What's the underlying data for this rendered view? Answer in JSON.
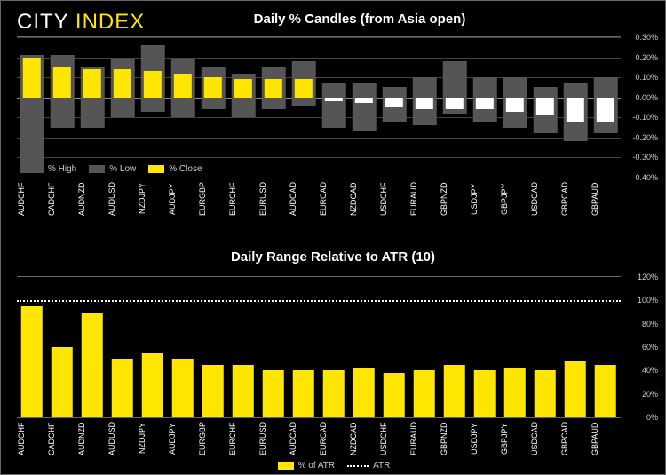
{
  "logo": {
    "city": "CITY",
    "index": "INDEX"
  },
  "chart1": {
    "title": "Daily % Candles (from Asia open)",
    "type": "candlestick-bar",
    "ylim": [
      -0.4,
      0.3
    ],
    "yticks": [
      -0.4,
      -0.3,
      -0.2,
      -0.1,
      0.0,
      0.1,
      0.2,
      0.3
    ],
    "ytick_labels": [
      "-0.40%",
      "-0.30%",
      "-0.20%",
      "-0.10%",
      "0.00%",
      "0.10%",
      "0.20%",
      "0.30%"
    ],
    "colors": {
      "high_low": "#555555",
      "close_pos": "#ffe600",
      "close_neg": "#ffffff",
      "background": "#000000",
      "grid": "#444444",
      "text": "#ffffff"
    },
    "bar_width_pct": 60,
    "wick_width_pct": 78,
    "categories": [
      "AUDCHF",
      "CADCHF",
      "AUDNZD",
      "AUDUSD",
      "NZDJPY",
      "AUDJPY",
      "EURGBP",
      "EURCHF",
      "EURUSD",
      "AUDCAD",
      "EURCAD",
      "NZDCAD",
      "USDCHF",
      "EURAUD",
      "GBPNZD",
      "USDJPY",
      "GBPJPY",
      "USDCAD",
      "GBPCAD",
      "GBPAUD"
    ],
    "high": [
      0.21,
      0.21,
      0.15,
      0.19,
      0.26,
      0.19,
      0.15,
      0.12,
      0.15,
      0.18,
      0.07,
      0.07,
      0.05,
      0.1,
      0.18,
      0.1,
      0.1,
      0.05,
      0.07,
      0.1
    ],
    "low": [
      -0.38,
      -0.15,
      -0.15,
      -0.1,
      -0.07,
      -0.1,
      -0.06,
      -0.1,
      -0.06,
      -0.04,
      -0.15,
      -0.17,
      -0.12,
      -0.14,
      -0.08,
      -0.12,
      -0.15,
      -0.18,
      -0.22,
      -0.18
    ],
    "close": [
      0.2,
      0.15,
      0.14,
      0.14,
      0.13,
      0.12,
      0.1,
      0.09,
      0.09,
      0.09,
      -0.02,
      -0.03,
      -0.05,
      -0.06,
      -0.06,
      -0.06,
      -0.07,
      -0.09,
      -0.12,
      -0.12
    ],
    "legend": [
      {
        "swatch": "grey",
        "label": "% High"
      },
      {
        "swatch": "grey",
        "label": "% Low"
      },
      {
        "swatch": "yellow",
        "label": "% Close"
      }
    ]
  },
  "chart2": {
    "title": "Daily Range Relative to ATR (10)",
    "type": "bar",
    "ylim": [
      0,
      120
    ],
    "yticks": [
      0,
      20,
      40,
      60,
      80,
      100,
      120
    ],
    "ytick_labels": [
      "0%",
      "20%",
      "40%",
      "60%",
      "80%",
      "100%",
      "120%"
    ],
    "colors": {
      "bar": "#ffe600",
      "atr_line": "#ffffff",
      "background": "#000000",
      "text": "#ffffff"
    },
    "bar_width_pct": 72,
    "atr_level": 100,
    "categories": [
      "AUDCHF",
      "CADCHF",
      "AUDNZD",
      "AUDUSD",
      "NZDJPY",
      "AUDJPY",
      "EURGBP",
      "EURCHF",
      "EURUSD",
      "AUDCAD",
      "EURCAD",
      "NZDCAD",
      "USDCHF",
      "EURAUD",
      "GBPNZD",
      "USDJPY",
      "GBPJPY",
      "USDCAD",
      "GBPCAD",
      "GBPAUD"
    ],
    "values": [
      95,
      60,
      90,
      50,
      55,
      50,
      45,
      45,
      40,
      40,
      40,
      42,
      38,
      40,
      45,
      40,
      42,
      40,
      48,
      45
    ],
    "legend": [
      {
        "swatch": "yellow",
        "label": "% of ATR"
      },
      {
        "swatch": "dotted",
        "label": "ATR"
      }
    ]
  }
}
